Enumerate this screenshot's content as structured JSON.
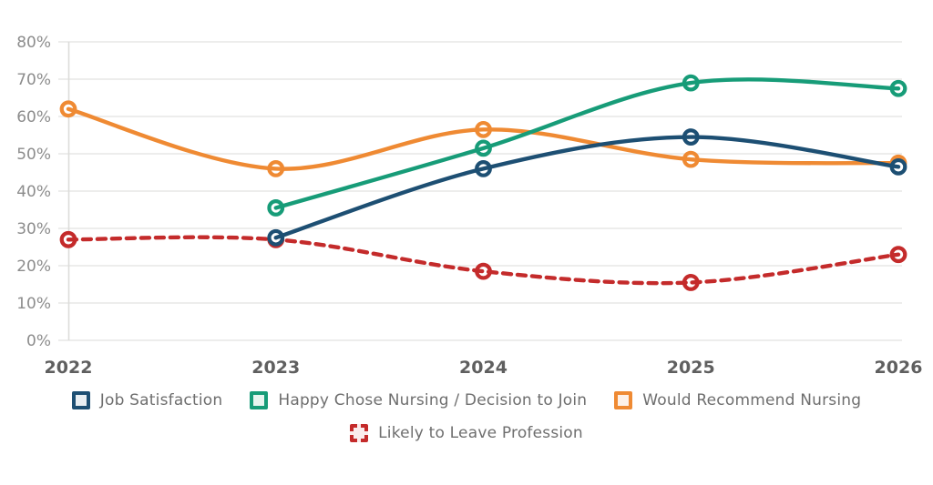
{
  "chart_data": {
    "type": "line",
    "title": "",
    "xlabel": "",
    "ylabel": "",
    "x_labels": [
      "2022",
      "2023",
      "2024",
      "2025",
      "2026"
    ],
    "y_ticks": [
      "0%",
      "10%",
      "20%",
      "30%",
      "40%",
      "50%",
      "60%",
      "70%",
      "80%"
    ],
    "ylim": [
      0,
      80
    ],
    "grid": true,
    "legend_position": "bottom",
    "series": [
      {
        "name": "Job Satisfaction",
        "color": "#1d4f73",
        "legend_fill": "#e9eff3",
        "line_style": "solid",
        "values": [
          null,
          27.5,
          46,
          54.5,
          46.5
        ]
      },
      {
        "name": "Happy Chose Nursing / Decision to Join",
        "color": "#179c78",
        "legend_fill": "#e8f5f0",
        "line_style": "solid",
        "values": [
          null,
          35.5,
          51.5,
          69,
          67.5
        ]
      },
      {
        "name": "Would Recommend Nursing",
        "color": "#ef8a33",
        "legend_fill": "#fdf1e8",
        "line_style": "solid",
        "values": [
          62,
          46,
          56.5,
          48.5,
          47.5
        ]
      },
      {
        "name": "Likely to Leave Profession",
        "color": "#c42b2b",
        "legend_fill": "#fbeded",
        "line_style": "dashed",
        "values": [
          27,
          27,
          18.5,
          15.5,
          23
        ]
      }
    ],
    "legend_rows": [
      [
        0,
        1,
        2
      ],
      [
        3
      ]
    ],
    "draw_order": [
      3,
      2,
      1,
      0
    ],
    "axis_colors": {
      "gridline": "#e7e7e5",
      "axis_line": "#dcdcda",
      "y_tick_label": "#8c8c8c",
      "x_tick_label": "#5f5f5f"
    },
    "marker": "open-circle"
  }
}
